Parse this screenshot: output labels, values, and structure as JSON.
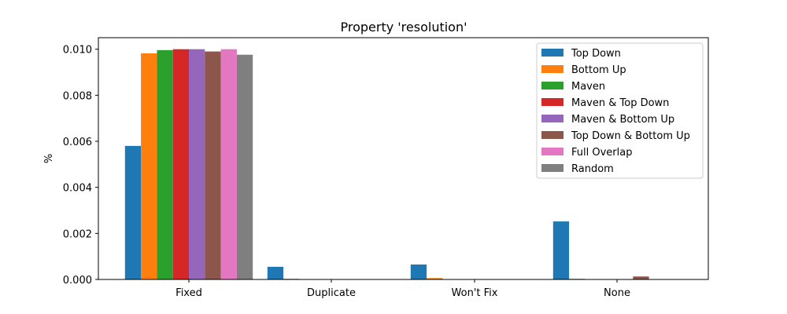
{
  "chart_data": {
    "type": "bar",
    "title": "Property 'resolution'",
    "xlabel": "",
    "ylabel": "%",
    "categories": [
      "Fixed",
      "Duplicate",
      "Won't Fix",
      "None"
    ],
    "ylim": [
      0,
      0.0105
    ],
    "yticks": [
      "0.000",
      "0.002",
      "0.004",
      "0.006",
      "0.008",
      "0.010"
    ],
    "ytick_values": [
      0,
      0.002,
      0.004,
      0.006,
      0.008,
      0.01
    ],
    "grid": false,
    "legend_position": "top-right",
    "series": [
      {
        "name": "Top Down",
        "color": "#1f77b4",
        "values": [
          0.0058,
          0.00055,
          0.00065,
          0.00252
        ]
      },
      {
        "name": "Bottom Up",
        "color": "#ff7f0e",
        "values": [
          0.00982,
          3e-05,
          6e-05,
          3e-05
        ]
      },
      {
        "name": "Maven",
        "color": "#2ca02c",
        "values": [
          0.00996,
          0.0,
          0.0,
          0.0
        ]
      },
      {
        "name": "Maven & Top Down",
        "color": "#d62728",
        "values": [
          0.01,
          0.0,
          0.0,
          0.0
        ]
      },
      {
        "name": "Maven & Bottom Up",
        "color": "#9467bd",
        "values": [
          0.01,
          0.0,
          0.0,
          0.0
        ]
      },
      {
        "name": "Top Down & Bottom Up",
        "color": "#8c564b",
        "values": [
          0.0099,
          0.0,
          0.0,
          0.00013
        ]
      },
      {
        "name": "Full Overlap",
        "color": "#e377c2",
        "values": [
          0.01,
          0.0,
          0.0,
          0.0
        ]
      },
      {
        "name": "Random",
        "color": "#7f7f7f",
        "values": [
          0.00976,
          0.0,
          0.0,
          0.0
        ]
      }
    ]
  }
}
